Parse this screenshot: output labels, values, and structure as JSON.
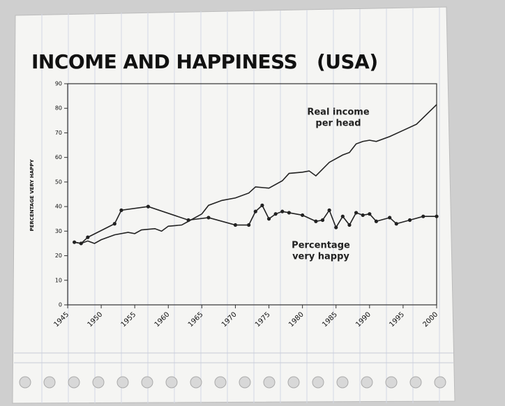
{
  "chart_data": {
    "type": "line",
    "title": "INCOME AND HAPPINESS   (USA)",
    "y_label": "PERCENTAGE VERY HAPPY",
    "annotations": [
      "Real income",
      "per head",
      "Percentage",
      "very happy"
    ],
    "xlim": [
      1945,
      2000
    ],
    "xticks": [
      1945,
      1950,
      1955,
      1960,
      1965,
      1970,
      1975,
      1980,
      1985,
      1990,
      1995,
      2000
    ],
    "ylim": [
      0,
      90
    ],
    "yticks": [
      0,
      10,
      20,
      30,
      40,
      50,
      60,
      70,
      80,
      90
    ],
    "series": [
      {
        "color": "#222222",
        "markers": false,
        "x": [
          1946,
          1947,
          1948,
          1949,
          1950,
          1952,
          1954,
          1955,
          1956,
          1958,
          1959,
          1960,
          1962,
          1963,
          1965,
          1966,
          1968,
          1970,
          1972,
          1973,
          1975,
          1977,
          1978,
          1980,
          1981,
          1982,
          1984,
          1986,
          1987,
          1988,
          1989,
          1990,
          1991,
          1993,
          1995,
          1997,
          2000
        ],
        "values": [
          25.5,
          25,
          26,
          25,
          26.5,
          28.5,
          29.5,
          29,
          30.5,
          31,
          30,
          32,
          32.5,
          34,
          37,
          40.5,
          42.5,
          43.5,
          45.5,
          48,
          47.5,
          50.5,
          53.5,
          54,
          54.5,
          52.5,
          58,
          61,
          62,
          65.5,
          66.5,
          67,
          66.5,
          68.5,
          71,
          73.5,
          81.5
        ]
      },
      {
        "color": "#222222",
        "markers": true,
        "x": [
          1946,
          1947,
          1948,
          1952,
          1953,
          1957,
          1963,
          1966,
          1970,
          1972,
          1973,
          1974,
          1975,
          1976,
          1977,
          1978,
          1980,
          1982,
          1983,
          1984,
          1985,
          1986,
          1987,
          1988,
          1989,
          1990,
          1991,
          1993,
          1994,
          1996,
          1998,
          2000
        ],
        "values": [
          25.5,
          25,
          27.5,
          33,
          38.5,
          40,
          34.5,
          35.5,
          32.5,
          32.5,
          38,
          40.5,
          35,
          37,
          38,
          37.5,
          36.5,
          34,
          34.5,
          38.5,
          31.5,
          36,
          32.5,
          37.5,
          36.5,
          37,
          34,
          35.5,
          33,
          34.5,
          36,
          36
        ]
      }
    ]
  }
}
